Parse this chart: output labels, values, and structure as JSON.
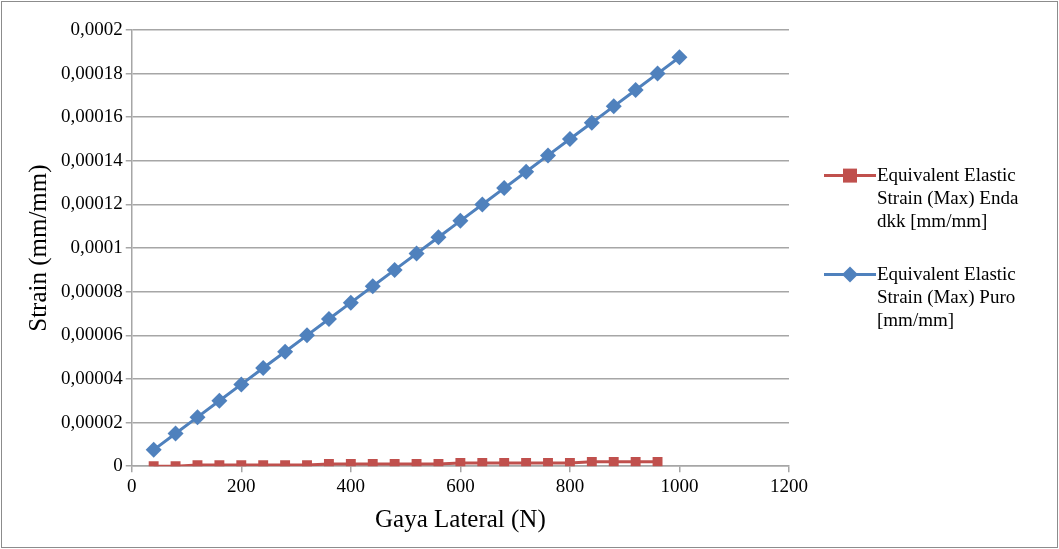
{
  "chart_data": {
    "type": "line",
    "xlabel": "Gaya Lateral (N)",
    "ylabel": "Strain (mm/mm)",
    "xlim": [
      0,
      1200
    ],
    "xticks": [
      0,
      200,
      400,
      600,
      800,
      1000,
      1200
    ],
    "ylim": [
      0,
      0.0002
    ],
    "yticks": [
      {
        "value": 0,
        "label": "0"
      },
      {
        "value": 2e-05,
        "label": "0,00002"
      },
      {
        "value": 4e-05,
        "label": "0,00004"
      },
      {
        "value": 6e-05,
        "label": "0,00006"
      },
      {
        "value": 8e-05,
        "label": "0,00008"
      },
      {
        "value": 0.0001,
        "label": "0,0001"
      },
      {
        "value": 0.00012,
        "label": "0,00012"
      },
      {
        "value": 0.00014,
        "label": "0,00014"
      },
      {
        "value": 0.00016,
        "label": "0,00016"
      },
      {
        "value": 0.00018,
        "label": "0,00018"
      },
      {
        "value": 0.0002,
        "label": "0,0002"
      }
    ],
    "grid": "y",
    "legend": "right",
    "line_style": "solid",
    "series": [
      {
        "name": "Equivalent Elastic Strain (Max) Enda dkk [mm/mm]",
        "color": "#c0504d",
        "marker": "square",
        "x": [
          40,
          80,
          120,
          160,
          200,
          240,
          280,
          320,
          360,
          400,
          440,
          480,
          520,
          560,
          600,
          640,
          680,
          720,
          760,
          800,
          840,
          880,
          920,
          960
        ],
        "values": [
          0,
          0,
          5e-07,
          5e-07,
          5e-07,
          5e-07,
          5e-07,
          5e-07,
          1e-06,
          1e-06,
          1e-06,
          1e-06,
          1e-06,
          1e-06,
          1.5e-06,
          1.5e-06,
          1.5e-06,
          1.5e-06,
          1.5e-06,
          1.5e-06,
          2e-06,
          2e-06,
          2e-06,
          2e-06
        ]
      },
      {
        "name": "Equivalent Elastic Strain (Max) Puro [mm/mm]",
        "color": "#4f81bd",
        "marker": "diamond",
        "x": [
          40,
          80,
          120,
          160,
          200,
          240,
          280,
          320,
          360,
          400,
          440,
          480,
          520,
          560,
          600,
          640,
          680,
          720,
          760,
          800,
          840,
          880,
          920,
          960,
          1000
        ],
        "values": [
          7.5e-06,
          1.5e-05,
          2.25e-05,
          3e-05,
          3.75e-05,
          4.5e-05,
          5.25e-05,
          6e-05,
          6.75e-05,
          7.5e-05,
          8.25e-05,
          9e-05,
          9.75e-05,
          0.000105,
          0.0001125,
          0.00012,
          0.0001275,
          0.000135,
          0.0001425,
          0.00015,
          0.0001575,
          0.000165,
          0.0001725,
          0.00018,
          0.0001875
        ]
      }
    ]
  }
}
